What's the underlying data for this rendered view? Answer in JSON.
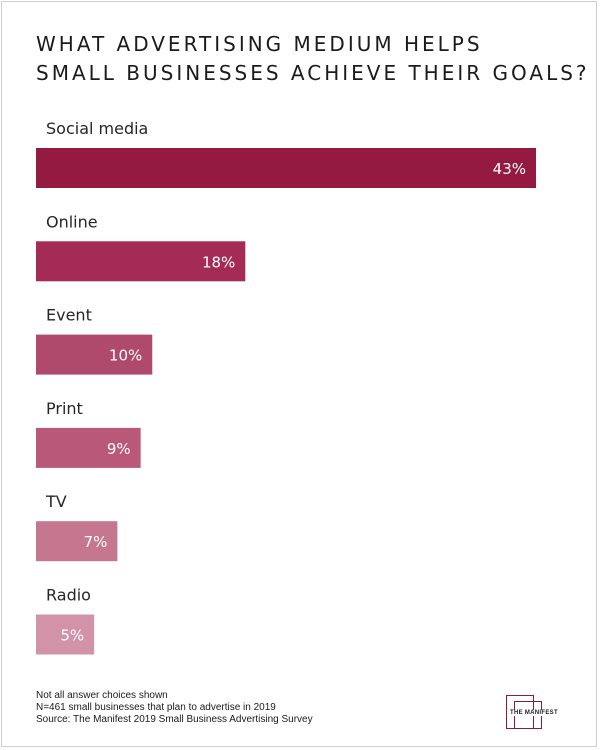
{
  "title_lines": [
    "WHAT ADVERTISING MEDIUM HELPS",
    "SMALL BUSINESSES ACHIEVE THEIR GOALS?"
  ],
  "chart_data": {
    "type": "bar",
    "orientation": "horizontal",
    "title": "WHAT ADVERTISING MEDIUM HELPS SMALL BUSINESSES ACHIEVE THEIR GOALS?",
    "categories": [
      "Social media",
      "Online",
      "Event",
      "Print",
      "TV",
      "Radio"
    ],
    "values": [
      43,
      18,
      10,
      9,
      7,
      5
    ],
    "value_labels": [
      "43%",
      "18%",
      "10%",
      "9%",
      "7%",
      "5%"
    ],
    "unit": "%",
    "xlim": [
      0,
      43
    ],
    "grid": false,
    "legend": "none",
    "bar_colors": [
      "#941a42",
      "#a32b55",
      "#af4a6d",
      "#b95878",
      "#c57790",
      "#d293a8"
    ]
  },
  "notes": [
    "Not all answer choices shown",
    "N=461 small businesses that plan to advertise in 2019",
    "Source: The Manifest 2019 Small Business Advertising Survey"
  ],
  "logo_text": "THE MANIFEST",
  "colors": {
    "brand": "#8e1a3e",
    "text": "#1b1b1b"
  }
}
